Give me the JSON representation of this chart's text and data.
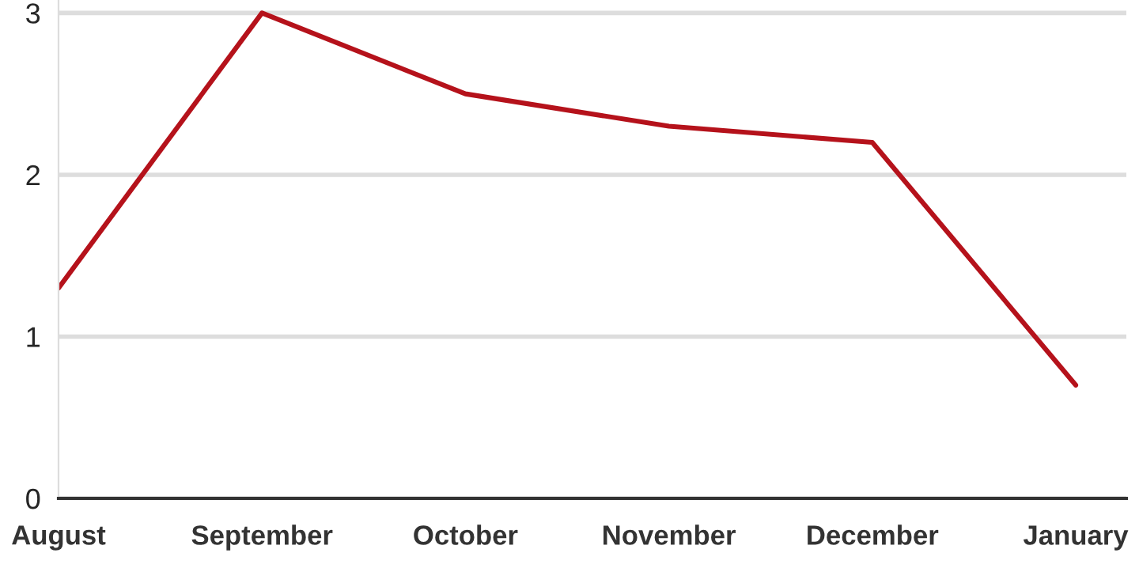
{
  "chart_data": {
    "type": "line",
    "categories": [
      "August",
      "September",
      "October",
      "November",
      "December",
      "January"
    ],
    "series": [
      {
        "color": "#b5121b",
        "values": [
          1.3,
          3.0,
          2.5,
          2.3,
          2.2,
          0.7
        ]
      }
    ],
    "ylim": [
      0,
      3.08
    ],
    "yticks": [
      0,
      1,
      2,
      3
    ],
    "grid": "y",
    "legend": false,
    "marker": "none",
    "line_style": "solid"
  }
}
